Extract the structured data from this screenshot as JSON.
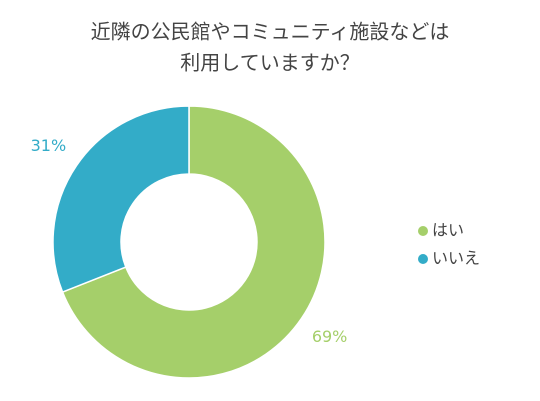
{
  "chart_data": {
    "type": "donut",
    "title": [
      "近隣の公民館やコミュニティ施設などは",
      "利用していますか？"
    ],
    "categories": [
      "はい",
      "いいえ"
    ],
    "values": [
      69,
      31
    ],
    "value_labels": [
      "69%",
      "31%"
    ],
    "colors": [
      "#a5cf6a",
      "#33acc8"
    ],
    "legend": "right"
  }
}
